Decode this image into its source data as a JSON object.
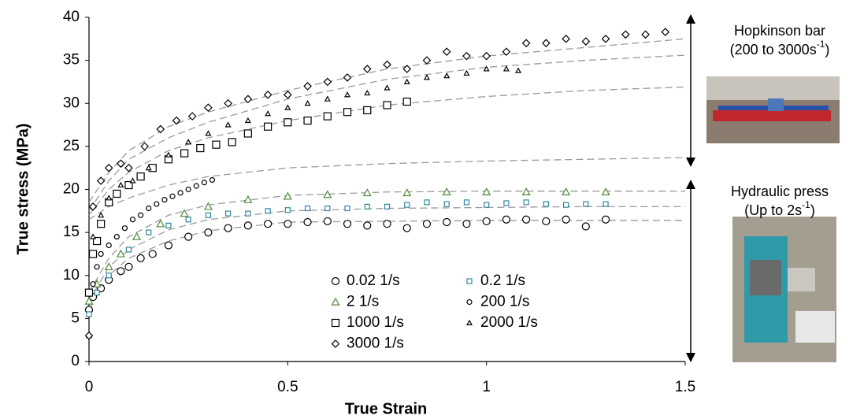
{
  "chart_data": {
    "type": "scatter",
    "xlabel": "True Strain",
    "ylabel": "True stress (MPa)",
    "xlim": [
      0,
      1.5
    ],
    "xticks": [
      0,
      0.5,
      1,
      1.5
    ],
    "ylim": [
      0,
      40
    ],
    "yticks": [
      0,
      5,
      10,
      15,
      20,
      25,
      30,
      35,
      40
    ],
    "legend": "bottom-right",
    "series": [
      {
        "name": "0.02 1/s",
        "marker": "circle",
        "color": "#000000",
        "x": [
          0,
          0.01,
          0.03,
          0.05,
          0.08,
          0.1,
          0.13,
          0.16,
          0.2,
          0.25,
          0.3,
          0.35,
          0.4,
          0.45,
          0.5,
          0.55,
          0.6,
          0.65,
          0.7,
          0.75,
          0.8,
          0.85,
          0.9,
          0.95,
          1.0,
          1.05,
          1.1,
          1.15,
          1.2,
          1.25,
          1.3
        ],
        "values": [
          6,
          7.5,
          8.5,
          9.5,
          10.5,
          11,
          12,
          12.5,
          13.5,
          14.5,
          15,
          15.5,
          15.8,
          16,
          16,
          16.2,
          16.3,
          16,
          15.8,
          16,
          15.5,
          16,
          16.2,
          16,
          16.3,
          16.5,
          16.5,
          16.3,
          16.5,
          15.7,
          16.5
        ]
      },
      {
        "name": "0.2 1/s",
        "marker": "square-small",
        "color": "#31859c",
        "x": [
          0,
          0.02,
          0.05,
          0.1,
          0.15,
          0.2,
          0.25,
          0.3,
          0.35,
          0.4,
          0.45,
          0.5,
          0.55,
          0.6,
          0.65,
          0.7,
          0.75,
          0.8,
          0.85,
          0.9,
          0.95,
          1,
          1.05,
          1.1,
          1.15,
          1.2,
          1.25,
          1.3
        ],
        "values": [
          5.5,
          8,
          10,
          13,
          15,
          15.8,
          16.5,
          17,
          17.2,
          17.2,
          17.5,
          17.6,
          17.8,
          17.8,
          17.8,
          18,
          18,
          18.2,
          18.5,
          18.3,
          18.5,
          18.2,
          18.4,
          18.5,
          18.3,
          18.2,
          18.3,
          18.3
        ]
      },
      {
        "name": "2 1/s",
        "marker": "triangle",
        "color": "#4f8a3c",
        "x": [
          0,
          0.02,
          0.05,
          0.08,
          0.12,
          0.18,
          0.24,
          0.3,
          0.4,
          0.5,
          0.6,
          0.7,
          0.8,
          0.9,
          1.0,
          1.1,
          1.2,
          1.3
        ],
        "values": [
          7,
          9,
          11,
          12.5,
          14.5,
          16,
          17.2,
          18,
          18.8,
          19.2,
          19.4,
          19.6,
          19.6,
          19.7,
          19.7,
          19.7,
          19.7,
          19.7
        ]
      },
      {
        "name": "200 1/s",
        "marker": "circle-small",
        "color": "#000000",
        "x": [
          0,
          0.01,
          0.02,
          0.03,
          0.05,
          0.07,
          0.09,
          0.11,
          0.13,
          0.15,
          0.17,
          0.19,
          0.21,
          0.23,
          0.25,
          0.27,
          0.29,
          0.31
        ],
        "values": [
          3,
          9,
          11,
          12.5,
          13.5,
          14.5,
          15.5,
          16.5,
          17,
          17.8,
          18.3,
          18.8,
          19.2,
          19.6,
          20,
          20.4,
          20.8,
          21.1
        ]
      },
      {
        "name": "1000 1/s",
        "marker": "square",
        "color": "#000000",
        "x": [
          0,
          0.01,
          0.02,
          0.03,
          0.05,
          0.07,
          0.1,
          0.13,
          0.16,
          0.2,
          0.24,
          0.28,
          0.32,
          0.36,
          0.4,
          0.45,
          0.5,
          0.55,
          0.6,
          0.65,
          0.7,
          0.75,
          0.8
        ],
        "values": [
          8,
          12.5,
          14,
          16,
          18.5,
          19.5,
          20.5,
          21.5,
          22.5,
          23.5,
          24.2,
          24.8,
          25.2,
          25.5,
          26.5,
          27.3,
          27.8,
          28,
          28.5,
          29,
          29.2,
          29.8,
          30.2
        ]
      },
      {
        "name": "2000 1/s",
        "marker": "triangle-small",
        "color": "#000000",
        "x": [
          0,
          0.01,
          0.03,
          0.05,
          0.08,
          0.11,
          0.15,
          0.2,
          0.25,
          0.3,
          0.35,
          0.4,
          0.45,
          0.5,
          0.55,
          0.6,
          0.65,
          0.7,
          0.75,
          0.8,
          0.85,
          0.9,
          0.95,
          1.0,
          1.05,
          1.08
        ],
        "values": [
          3,
          14.5,
          17,
          19,
          20.5,
          21,
          22.5,
          24,
          25.5,
          26.5,
          27.5,
          28,
          28.8,
          29.5,
          30,
          30.5,
          31,
          31.2,
          31.8,
          32.5,
          33,
          33.2,
          33.5,
          34,
          34,
          33.8
        ]
      },
      {
        "name": "3000 1/s",
        "marker": "diamond",
        "color": "#000000",
        "x": [
          0,
          0.01,
          0.03,
          0.05,
          0.08,
          0.1,
          0.14,
          0.18,
          0.22,
          0.26,
          0.3,
          0.35,
          0.4,
          0.45,
          0.5,
          0.55,
          0.6,
          0.65,
          0.7,
          0.75,
          0.8,
          0.85,
          0.9,
          0.95,
          1.0,
          1.05,
          1.1,
          1.15,
          1.2,
          1.25,
          1.3,
          1.35,
          1.4,
          1.45
        ],
        "values": [
          3,
          18,
          21,
          22.5,
          23,
          22.5,
          25,
          27,
          28,
          28.5,
          29.5,
          30,
          30.5,
          31,
          31,
          32,
          32.5,
          33,
          34,
          34.5,
          34,
          35,
          36,
          35.5,
          35.5,
          36,
          37,
          37,
          37.5,
          37.2,
          37.5,
          38,
          38,
          38.3
        ]
      }
    ],
    "fit_color": "#9a9a9a",
    "fit_x": [
      0,
      0.05,
      0.1,
      0.2,
      0.3,
      0.5,
      0.75,
      1.0,
      1.25,
      1.5
    ],
    "fits": [
      [
        6,
        10,
        12,
        14,
        15.2,
        16.2,
        16.3,
        16.4,
        16.4,
        16.4
      ],
      [
        7,
        11,
        13,
        15.3,
        16.5,
        17.5,
        17.8,
        17.9,
        18,
        18
      ],
      [
        8,
        12,
        14.5,
        17,
        18.2,
        19.3,
        19.7,
        19.8,
        19.8,
        19.8
      ],
      [
        16.5,
        18,
        19,
        20.5,
        21.5,
        22.5,
        23,
        23.3,
        23.5,
        23.7
      ],
      [
        17,
        20,
        22,
        24.5,
        26,
        28,
        29.8,
        30.8,
        31.5,
        31.9
      ],
      [
        17.5,
        21,
        23.5,
        26,
        27.8,
        30.5,
        32.8,
        34.2,
        35,
        35.6
      ],
      [
        18.5,
        22,
        24.5,
        27.3,
        29,
        31.5,
        34,
        35.5,
        36.5,
        37.5
      ]
    ],
    "annotations": [
      {
        "lines": [
          [
            "Hopkinson bar"
          ],
          [
            "(200 to 3000s",
            "-1",
            ")"
          ]
        ]
      },
      {
        "lines": [
          [
            "Hydraulic press"
          ],
          [
            "(Up to 2s",
            "-1",
            ")"
          ]
        ]
      }
    ]
  }
}
